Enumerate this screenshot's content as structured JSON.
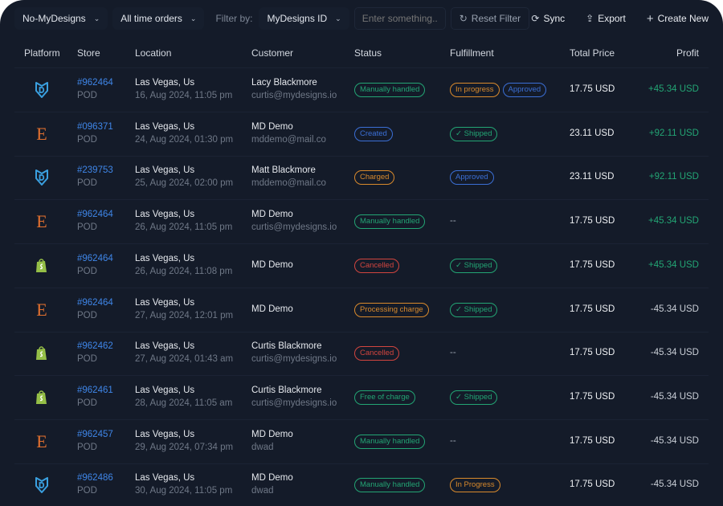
{
  "toolbar": {
    "store_select": "No-MyDesigns",
    "orders_select": "All time orders",
    "filter_label": "Filter by:",
    "filter_select": "MyDesigns ID",
    "search_placeholder": "Enter something...",
    "reset": "Reset Filter",
    "sync": "Sync",
    "export": "Export",
    "create": "Create New"
  },
  "columns": {
    "platform": "Platform",
    "store": "Store",
    "location": "Location",
    "customer": "Customer",
    "status": "Status",
    "fulfillment": "Fulfillment",
    "total": "Total Price",
    "profit": "Profit"
  },
  "colors": {
    "green": "#23a574",
    "blue": "#3b6fd6",
    "orange": "#d98a2c",
    "red": "#d2453f",
    "link": "#3f86e8"
  },
  "rows": [
    {
      "platform": "mydesigns",
      "id": "#962464",
      "store": "POD",
      "city": "Las Vegas, Us",
      "date": "16, Aug 2024, 11:05 pm",
      "name": "Lacy Blackmore",
      "email": "curtis@mydesigns.io",
      "status": [
        {
          "label": "Manually handled",
          "color": "green"
        }
      ],
      "fulfillment": [
        {
          "label": "In progress",
          "color": "orange"
        },
        {
          "label": "Approved",
          "color": "blue"
        }
      ],
      "total": "17.75 USD",
      "profit": "+45.34 USD"
    },
    {
      "platform": "etsy",
      "id": "#096371",
      "store": "POD",
      "city": "Las Vegas, Us",
      "date": "24, Aug 2024, 01:30 pm",
      "name": "MD Demo",
      "email": "mddemo@mail.co",
      "status": [
        {
          "label": "Created",
          "color": "blue"
        }
      ],
      "fulfillment": [
        {
          "label": "Shipped",
          "color": "green",
          "check": true
        }
      ],
      "total": "23.11 USD",
      "profit": "+92.11 USD"
    },
    {
      "platform": "mydesigns",
      "id": "#239753",
      "store": "POD",
      "city": "Las Vegas, Us",
      "date": "25, Aug 2024, 02:00 pm",
      "name": "Matt Blackmore",
      "email": "mddemo@mail.co",
      "status": [
        {
          "label": "Charged",
          "color": "orange"
        }
      ],
      "fulfillment": [
        {
          "label": "Approved",
          "color": "blue"
        }
      ],
      "total": "23.11 USD",
      "profit": "+92.11 USD"
    },
    {
      "platform": "etsy",
      "id": "#962464",
      "store": "POD",
      "city": "Las Vegas, Us",
      "date": "26, Aug 2024, 11:05 pm",
      "name": "MD Demo",
      "email": "curtis@mydesigns.io",
      "status": [
        {
          "label": "Manually handled",
          "color": "green"
        }
      ],
      "fulfillment_text": "--",
      "total": "17.75 USD",
      "profit": "+45.34 USD"
    },
    {
      "platform": "shopify",
      "id": "#962464",
      "store": "POD",
      "city": "Las Vegas, Us",
      "date": "26, Aug 2024, 11:08 pm",
      "name": "MD Demo",
      "email": "",
      "status": [
        {
          "label": "Cancelled",
          "color": "red"
        }
      ],
      "fulfillment": [
        {
          "label": "Shipped",
          "color": "green",
          "check": true
        }
      ],
      "total": "17.75 USD",
      "profit": "+45.34 USD"
    },
    {
      "platform": "etsy",
      "id": "#962464",
      "store": "POD",
      "city": "Las Vegas, Us",
      "date": "27, Aug 2024, 12:01 pm",
      "name": "MD Demo",
      "email": "",
      "status": [
        {
          "label": "Processing charge",
          "color": "orange"
        }
      ],
      "fulfillment": [
        {
          "label": "Shipped",
          "color": "green",
          "check": true
        }
      ],
      "total": "17.75 USD",
      "profit": "-45.34 USD"
    },
    {
      "platform": "shopify",
      "id": "#962462",
      "store": "POD",
      "city": "Las Vegas, Us",
      "date": "27, Aug 2024, 01:43 am",
      "name": "Curtis Blackmore",
      "email": "curtis@mydesigns.io",
      "status": [
        {
          "label": "Cancelled",
          "color": "red"
        }
      ],
      "fulfillment_text": "--",
      "total": "17.75 USD",
      "profit": "-45.34 USD"
    },
    {
      "platform": "shopify",
      "id": "#962461",
      "store": "POD",
      "city": "Las Vegas, Us",
      "date": "28, Aug 2024, 11:05 am",
      "name": "Curtis Blackmore",
      "email": "curtis@mydesigns.io",
      "status": [
        {
          "label": "Free of charge",
          "color": "green"
        }
      ],
      "fulfillment": [
        {
          "label": "Shipped",
          "color": "green",
          "check": true
        }
      ],
      "total": "17.75 USD",
      "profit": "-45.34 USD"
    },
    {
      "platform": "etsy",
      "id": "#962457",
      "store": "POD",
      "city": "Las Vegas, Us",
      "date": "29, Aug 2024, 07:34 pm",
      "name": "MD Demo",
      "email": "dwad",
      "status": [
        {
          "label": "Manually handled",
          "color": "green"
        }
      ],
      "fulfillment_text": "--",
      "total": "17.75 USD",
      "profit": "-45.34 USD"
    },
    {
      "platform": "mydesigns",
      "id": "#962486",
      "store": "POD",
      "city": "Las Vegas, Us",
      "date": "30, Aug 2024, 11:05 pm",
      "name": "MD Demo",
      "email": "dwad",
      "status": [
        {
          "label": "Manually handled",
          "color": "green"
        }
      ],
      "fulfillment": [
        {
          "label": "In Progress",
          "color": "orange"
        }
      ],
      "total": "17.75 USD",
      "profit": "-45.34 USD"
    }
  ]
}
